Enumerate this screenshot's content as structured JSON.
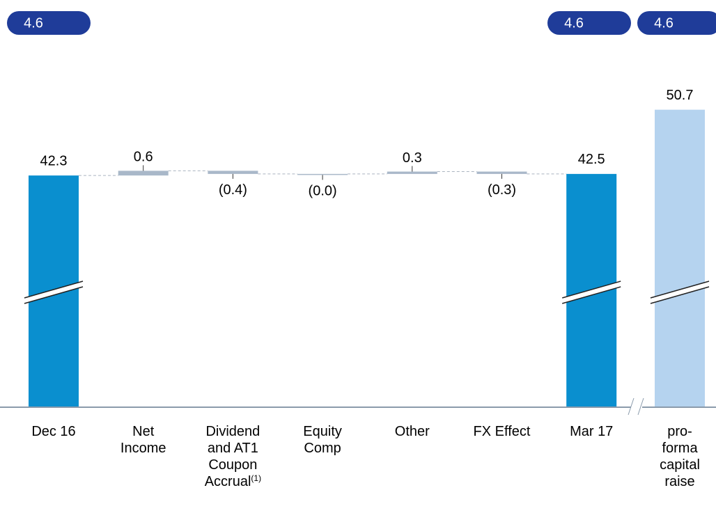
{
  "chart_data": {
    "type": "waterfall",
    "categories": [
      "Dec 16",
      "Net Income",
      "Dividend and AT1 Coupon Accrual",
      "Equity Comp",
      "Other",
      "FX Effect",
      "Mar 17",
      "pro-forma capital raise"
    ],
    "category_notes": [
      null,
      null,
      "(1)",
      null,
      null,
      null,
      null,
      null
    ],
    "values": [
      42.3,
      0.6,
      -0.4,
      0,
      0.3,
      -0.3,
      42.5,
      50.7
    ],
    "value_labels": [
      "42.3",
      "0.6",
      "(0.4)",
      "(0.0)",
      "0.3",
      "(0.3)",
      "42.5",
      "50.7"
    ],
    "colors": [
      "#0a8fcf",
      "#a9b8c9",
      "#a9b8c9",
      "#a9b8c9",
      "#a9b8c9",
      "#a9b8c9",
      "#0a8fcf",
      "#b5d3ef"
    ],
    "badges": [
      4.6,
      4.6,
      4.6
    ]
  }
}
